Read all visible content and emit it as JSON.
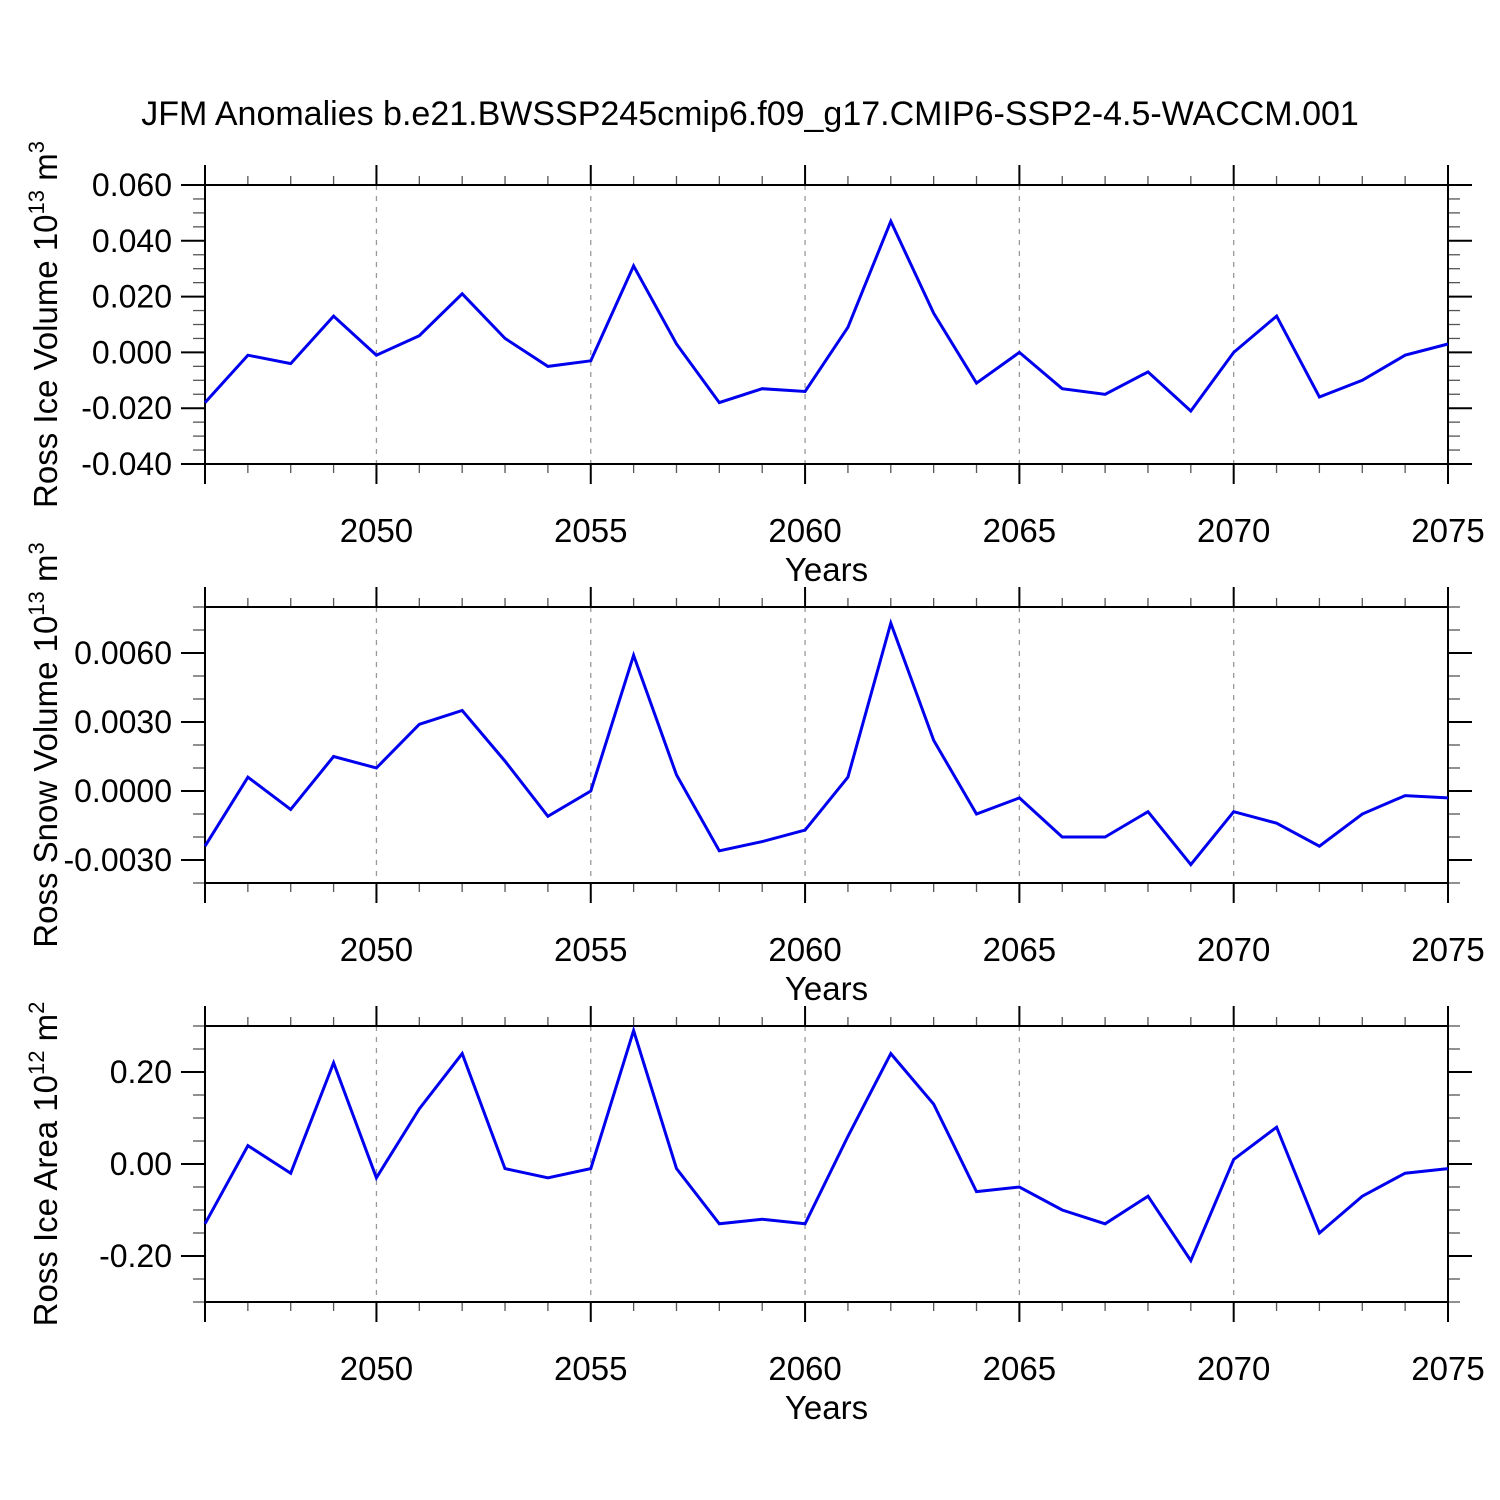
{
  "title": "JFM Anomalies b.e21.BWSSP245cmip6.f09_g17.CMIP6-SSP2-4.5-WACCM.001",
  "colors": {
    "line": "#0000EE",
    "grid_dash": "#999999",
    "axis": "#000000",
    "minor_tick": "#555555",
    "text": "#000000",
    "background": "#FFFFFF"
  },
  "x_axis": {
    "label": "Years",
    "tick_labels": [
      "2050",
      "2055",
      "2060",
      "2065",
      "2070",
      "2075"
    ],
    "major_years": [
      2050,
      2055,
      2060,
      2065,
      2070,
      2075
    ],
    "grid_years": [
      2050,
      2055,
      2060,
      2065,
      2070
    ],
    "years": [
      2046,
      2047,
      2048,
      2049,
      2050,
      2051,
      2052,
      2053,
      2054,
      2055,
      2056,
      2057,
      2058,
      2059,
      2060,
      2061,
      2062,
      2063,
      2064,
      2065,
      2066,
      2067,
      2068,
      2069,
      2070,
      2071,
      2072,
      2073,
      2074,
      2075
    ]
  },
  "chart_data": [
    {
      "type": "line",
      "name": "ross-ice-volume",
      "ylabel": "Ross Ice Volume 10^13 m^3",
      "ylabel_parts": [
        {
          "t": "Ross Ice Volume 10"
        },
        {
          "sup": "13"
        },
        {
          "t": " m"
        },
        {
          "sup": "3"
        }
      ],
      "xlabel": "Years",
      "ylim": [
        -0.04,
        0.06
      ],
      "yticks": [
        0.06,
        0.04,
        0.02,
        0.0,
        -0.02,
        -0.04
      ],
      "ytick_labels": [
        "0.060",
        "0.040",
        "0.020",
        "0.000",
        "-0.020",
        "-0.040"
      ],
      "yminor_step": 0.005,
      "values": [
        -0.018,
        -0.001,
        -0.004,
        0.013,
        -0.001,
        0.006,
        0.021,
        0.005,
        -0.005,
        -0.003,
        0.031,
        0.003,
        -0.018,
        -0.013,
        -0.014,
        0.009,
        0.047,
        0.014,
        -0.011,
        0.0,
        -0.013,
        -0.015,
        -0.007,
        -0.021,
        0.0,
        0.013,
        -0.016,
        -0.01,
        -0.001,
        0.003
      ]
    },
    {
      "type": "line",
      "name": "ross-snow-volume",
      "ylabel": "Ross Snow Volume 10^13 m^3",
      "ylabel_parts": [
        {
          "t": "Ross Snow Volume 10"
        },
        {
          "sup": "13"
        },
        {
          "t": " m"
        },
        {
          "sup": "3"
        }
      ],
      "xlabel": "Years",
      "ylim": [
        -0.004,
        0.008
      ],
      "yticks": [
        0.006,
        0.003,
        0.0,
        -0.003
      ],
      "ytick_labels": [
        "0.0060",
        "0.0030",
        "0.0000",
        "-0.0030"
      ],
      "yminor_step": 0.001,
      "values": [
        -0.0024,
        0.0006,
        -0.0008,
        0.0015,
        0.001,
        0.0029,
        0.0035,
        0.0013,
        -0.0011,
        0.0,
        0.0059,
        0.0007,
        -0.0026,
        -0.0022,
        -0.0017,
        0.0006,
        0.0073,
        0.0022,
        -0.001,
        -0.0003,
        -0.002,
        -0.002,
        -0.0009,
        -0.0032,
        -0.0009,
        -0.0014,
        -0.0024,
        -0.001,
        -0.0002,
        -0.0003
      ]
    },
    {
      "type": "line",
      "name": "ross-ice-area",
      "ylabel": "Ross Ice Area 10^12 m^2",
      "ylabel_parts": [
        {
          "t": "Ross Ice Area 10"
        },
        {
          "sup": "12"
        },
        {
          "t": " m"
        },
        {
          "sup": "2"
        }
      ],
      "xlabel": "Years",
      "ylim": [
        -0.3,
        0.3
      ],
      "yticks": [
        0.2,
        0.0,
        -0.2
      ],
      "ytick_labels": [
        "0.20",
        "0.00",
        "-0.20"
      ],
      "yminor_step": 0.05,
      "values": [
        -0.13,
        0.04,
        -0.02,
        0.22,
        -0.03,
        0.12,
        0.24,
        -0.01,
        -0.03,
        -0.01,
        0.29,
        -0.01,
        -0.13,
        -0.12,
        -0.13,
        0.06,
        0.24,
        0.13,
        -0.06,
        -0.05,
        -0.1,
        -0.13,
        -0.07,
        -0.21,
        0.01,
        0.08,
        -0.15,
        -0.07,
        -0.02,
        -0.01
      ]
    }
  ]
}
